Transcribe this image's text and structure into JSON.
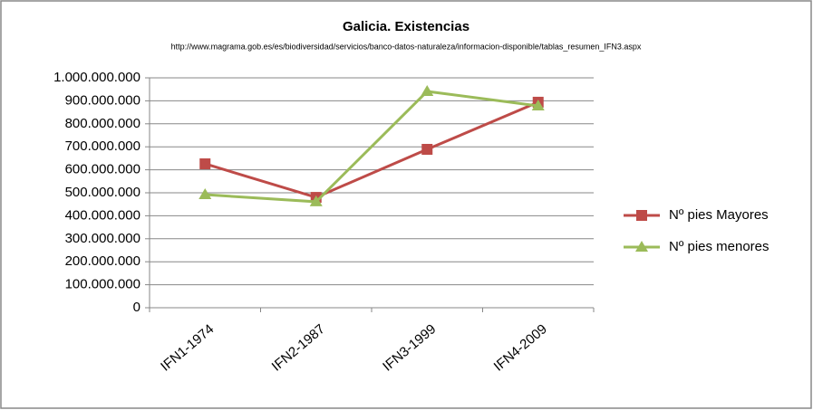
{
  "chart_data": {
    "type": "line",
    "title": "Galicia. Existencias",
    "subtitle": "http://www.magrama.gob.es/es/biodiversidad/servicios/banco-datos-naturaleza/informacion-disponible/tablas_resumen_IFN3.aspx",
    "categories": [
      "IFN1-1974",
      "IFN2-1987",
      "IFN3-1999",
      "IFN4-2009"
    ],
    "series": [
      {
        "name": "Nº pies Mayores",
        "color": "#be4b48",
        "marker": "square",
        "values": [
          626000000,
          480000000,
          689000000,
          894000000
        ]
      },
      {
        "name": "Nº pies menores",
        "color": "#9bbb59",
        "marker": "triangle",
        "values": [
          492000000,
          461000000,
          941000000,
          878000000
        ]
      }
    ],
    "ylim": [
      0,
      1000000000
    ],
    "yticks": [
      0,
      {
        "value": 100000000,
        "label": "100.000.000"
      },
      {
        "value": 200000000,
        "label": "200.000.000"
      },
      {
        "value": 300000000,
        "label": "300.000.000"
      },
      {
        "value": 400000000,
        "label": "400.000.000"
      },
      {
        "value": 500000000,
        "label": "500.000.000"
      },
      {
        "value": 600000000,
        "label": "600.000.000"
      },
      {
        "value": 700000000,
        "label": "700.000.000"
      },
      {
        "value": 800000000,
        "label": "800.000.000"
      },
      {
        "value": 900000000,
        "label": "900.000.000"
      },
      {
        "value": 1000000000,
        "label": "1.000.000.000"
      }
    ],
    "grid": true,
    "legend": "right"
  }
}
